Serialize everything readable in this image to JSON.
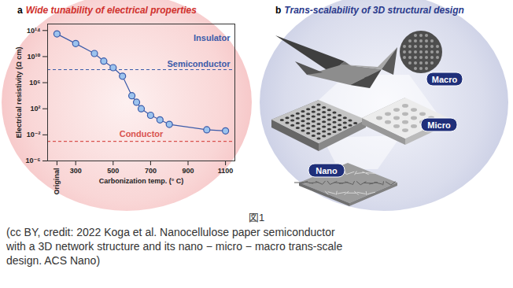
{
  "chart_data": {
    "type": "line",
    "panel": "a",
    "title": "Wide tunability of electrical properties",
    "x_label": "Carbonization temp. (° C)",
    "y_label": "Electrical resistivity (Ω cm)",
    "x": [
      200,
      300,
      400,
      450,
      500,
      550,
      600,
      625,
      650,
      700,
      750,
      800,
      1000,
      1100
    ],
    "values": [
      30000000000000.0,
      1000000000000.0,
      30000000000.0,
      2000000000.0,
      200000000.0,
      10000000.0,
      10000.0,
      1000.0,
      100,
      10,
      2,
      0.4,
      0.06,
      0.04
    ],
    "color": "#3b5ba9",
    "marker": "circle",
    "log": "y",
    "xlim": [
      150,
      1150
    ],
    "xticks": [
      {
        "value": 200,
        "label": "Original"
      },
      300,
      500,
      700,
      900,
      1100
    ],
    "ylim": [
      1e-06,
      1000000000000000.0
    ],
    "yticks": [
      {
        "value": 100000000000000.0,
        "label": "10¹⁴"
      },
      {
        "value": 10000000000.0,
        "label": "10¹⁰"
      },
      {
        "value": 1000000.0,
        "label": "10⁶"
      },
      {
        "value": 100,
        "label": "10²"
      },
      {
        "value": 0.01,
        "label": "10⁻²"
      },
      {
        "value": 1e-06,
        "label": "10⁻⁶"
      }
    ],
    "reference_lines": [
      {
        "value": 100000000.0,
        "color": "#3b5ba9",
        "line_style": "dashed"
      },
      {
        "value": 0.001,
        "color": "#d9534f",
        "line_style": "dashed"
      }
    ],
    "annotations": [
      {
        "text": "Insulator",
        "color": "#3b5ba9"
      },
      {
        "text": "Semiconductor",
        "color": "#3b5ba9"
      },
      {
        "text": "Conductor",
        "color": "#d9534f"
      }
    ]
  },
  "diagram": {
    "panel": "b",
    "title": "Trans-scalability of 3D structural design",
    "labels": [
      "Macro",
      "Micro",
      "Nano"
    ]
  },
  "figure_label": "図1",
  "caption": [
    "(cc BY, credit: 2022 Koga et al. Nanocellulose paper semiconductor",
    "with a 3D network structure and its nano − micro − macro trans-scale",
    "design. ACS Nano)"
  ]
}
